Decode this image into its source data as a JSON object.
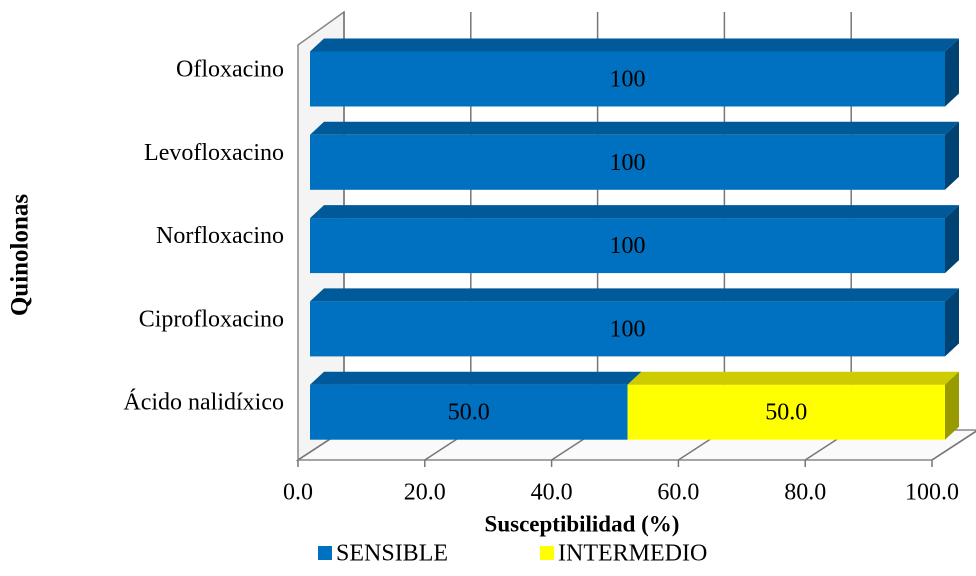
{
  "chart_data": {
    "type": "bar3d_stacked_horizontal",
    "ylabel": "Quinolonas",
    "xlabel": "Susceptibilidad (%)",
    "categories": [
      "Ofloxacino",
      "Levofloxacino",
      "Norfloxacino",
      "Ciprofloxacino",
      "Ácido nalidíxico"
    ],
    "series": [
      {
        "name": "SENSIBLE",
        "color": "#0070c0",
        "values": [
          100,
          100,
          100,
          100,
          50
        ],
        "value_labels": [
          "100",
          "100",
          "100",
          "100",
          "50.0"
        ]
      },
      {
        "name": "INTERMEDIO",
        "color": "#ffff00",
        "values": [
          0,
          0,
          0,
          0,
          50
        ],
        "value_labels": [
          null,
          null,
          null,
          null,
          "50.0"
        ]
      }
    ],
    "xlim": [
      0,
      100
    ],
    "xticks": [
      {
        "value": 0,
        "label": "0.0"
      },
      {
        "value": 20,
        "label": "20.0"
      },
      {
        "value": 40,
        "label": "40.0"
      },
      {
        "value": 60,
        "label": "60.0"
      },
      {
        "value": 80,
        "label": "80.0"
      },
      {
        "value": 100,
        "label": "100.0"
      }
    ],
    "grid": true,
    "legend": "bottom"
  }
}
